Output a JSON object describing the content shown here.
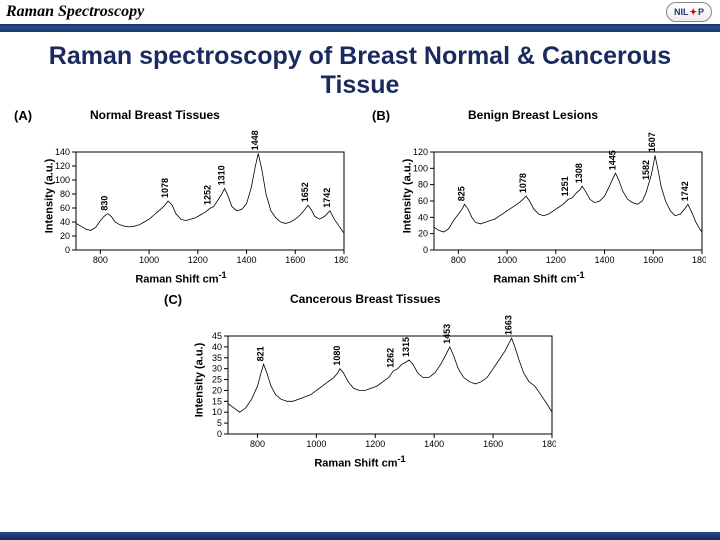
{
  "header": {
    "title": "Raman Spectroscopy",
    "logo_text": "NIL*P"
  },
  "main_title": "Raman spectroscopy of Breast Normal & Cancerous Tissue",
  "colors": {
    "header_border": "#1a3a6e",
    "title_color": "#1a2a5e",
    "line_color": "#000000",
    "axis_color": "#000000",
    "background": "#ffffff"
  },
  "axis_labels": {
    "y": "Intensity (a.u.)",
    "x_html": "Raman Shift cm⁻¹"
  },
  "chart_common": {
    "type": "line",
    "xlim": [
      700,
      1800
    ],
    "xtick_step": 200,
    "line_width": 0.8,
    "font_size_tick": 9,
    "font_size_label": 11,
    "font_size_subtitle": 12
  },
  "charts": {
    "A": {
      "panel": "(A)",
      "subtitle": "Normal Breast Tissues",
      "ylim": [
        0,
        140
      ],
      "ytick_step": 20,
      "peaks": [
        830,
        1078,
        1252,
        1310,
        1448,
        1652,
        1742
      ],
      "spectrum": [
        [
          700,
          38
        ],
        [
          720,
          34
        ],
        [
          740,
          30
        ],
        [
          760,
          28
        ],
        [
          780,
          32
        ],
        [
          800,
          42
        ],
        [
          815,
          48
        ],
        [
          830,
          52
        ],
        [
          845,
          48
        ],
        [
          860,
          40
        ],
        [
          880,
          36
        ],
        [
          900,
          34
        ],
        [
          920,
          33
        ],
        [
          940,
          34
        ],
        [
          960,
          36
        ],
        [
          980,
          40
        ],
        [
          1000,
          44
        ],
        [
          1020,
          50
        ],
        [
          1040,
          56
        ],
        [
          1060,
          62
        ],
        [
          1078,
          70
        ],
        [
          1095,
          64
        ],
        [
          1110,
          52
        ],
        [
          1130,
          44
        ],
        [
          1150,
          42
        ],
        [
          1170,
          44
        ],
        [
          1190,
          46
        ],
        [
          1210,
          50
        ],
        [
          1230,
          54
        ],
        [
          1252,
          60
        ],
        [
          1265,
          62
        ],
        [
          1280,
          70
        ],
        [
          1295,
          78
        ],
        [
          1310,
          88
        ],
        [
          1325,
          76
        ],
        [
          1340,
          62
        ],
        [
          1360,
          56
        ],
        [
          1380,
          58
        ],
        [
          1400,
          66
        ],
        [
          1420,
          90
        ],
        [
          1435,
          118
        ],
        [
          1448,
          138
        ],
        [
          1462,
          116
        ],
        [
          1480,
          80
        ],
        [
          1500,
          56
        ],
        [
          1520,
          46
        ],
        [
          1540,
          40
        ],
        [
          1560,
          38
        ],
        [
          1580,
          40
        ],
        [
          1600,
          44
        ],
        [
          1620,
          50
        ],
        [
          1640,
          58
        ],
        [
          1652,
          64
        ],
        [
          1665,
          58
        ],
        [
          1680,
          48
        ],
        [
          1700,
          44
        ],
        [
          1720,
          48
        ],
        [
          1742,
          56
        ],
        [
          1760,
          44
        ],
        [
          1780,
          34
        ],
        [
          1800,
          24
        ]
      ]
    },
    "B": {
      "panel": "(B)",
      "subtitle": "Benign Breast Lesions",
      "ylim": [
        0,
        120
      ],
      "ytick_step": 20,
      "peaks": [
        825,
        1078,
        1251,
        1308,
        1445,
        1582,
        1607,
        1742
      ],
      "spectrum": [
        [
          700,
          28
        ],
        [
          720,
          24
        ],
        [
          740,
          22
        ],
        [
          760,
          26
        ],
        [
          780,
          36
        ],
        [
          800,
          44
        ],
        [
          815,
          50
        ],
        [
          825,
          56
        ],
        [
          840,
          50
        ],
        [
          855,
          40
        ],
        [
          870,
          34
        ],
        [
          890,
          32
        ],
        [
          910,
          34
        ],
        [
          930,
          36
        ],
        [
          950,
          38
        ],
        [
          970,
          42
        ],
        [
          990,
          46
        ],
        [
          1010,
          50
        ],
        [
          1030,
          54
        ],
        [
          1050,
          58
        ],
        [
          1065,
          62
        ],
        [
          1078,
          66
        ],
        [
          1092,
          60
        ],
        [
          1110,
          50
        ],
        [
          1130,
          44
        ],
        [
          1150,
          42
        ],
        [
          1170,
          44
        ],
        [
          1190,
          48
        ],
        [
          1210,
          52
        ],
        [
          1230,
          56
        ],
        [
          1251,
          62
        ],
        [
          1268,
          64
        ],
        [
          1285,
          70
        ],
        [
          1300,
          74
        ],
        [
          1308,
          78
        ],
        [
          1322,
          72
        ],
        [
          1340,
          62
        ],
        [
          1360,
          58
        ],
        [
          1380,
          60
        ],
        [
          1400,
          66
        ],
        [
          1420,
          78
        ],
        [
          1435,
          88
        ],
        [
          1445,
          94
        ],
        [
          1458,
          86
        ],
        [
          1475,
          72
        ],
        [
          1495,
          62
        ],
        [
          1515,
          58
        ],
        [
          1535,
          56
        ],
        [
          1555,
          60
        ],
        [
          1570,
          70
        ],
        [
          1582,
          82
        ],
        [
          1592,
          92
        ],
        [
          1600,
          104
        ],
        [
          1607,
          116
        ],
        [
          1618,
          100
        ],
        [
          1632,
          78
        ],
        [
          1650,
          60
        ],
        [
          1670,
          48
        ],
        [
          1690,
          42
        ],
        [
          1710,
          44
        ],
        [
          1728,
          50
        ],
        [
          1742,
          56
        ],
        [
          1758,
          46
        ],
        [
          1775,
          34
        ],
        [
          1790,
          26
        ],
        [
          1800,
          22
        ]
      ]
    },
    "C": {
      "panel": "(C)",
      "subtitle": "Cancerous Breast Tissues",
      "ylim": [
        0,
        45
      ],
      "ytick_step": 5,
      "peaks": [
        821,
        1080,
        1262,
        1315,
        1453,
        1663
      ],
      "spectrum": [
        [
          700,
          14
        ],
        [
          720,
          12
        ],
        [
          740,
          10
        ],
        [
          760,
          12
        ],
        [
          780,
          16
        ],
        [
          800,
          22
        ],
        [
          812,
          28
        ],
        [
          821,
          32
        ],
        [
          832,
          28
        ],
        [
          846,
          22
        ],
        [
          862,
          18
        ],
        [
          880,
          16
        ],
        [
          900,
          15
        ],
        [
          920,
          15
        ],
        [
          940,
          16
        ],
        [
          960,
          17
        ],
        [
          980,
          18
        ],
        [
          1000,
          20
        ],
        [
          1020,
          22
        ],
        [
          1040,
          24
        ],
        [
          1060,
          26
        ],
        [
          1072,
          28
        ],
        [
          1080,
          30
        ],
        [
          1092,
          28
        ],
        [
          1108,
          24
        ],
        [
          1126,
          21
        ],
        [
          1146,
          20
        ],
        [
          1166,
          20
        ],
        [
          1186,
          21
        ],
        [
          1206,
          22
        ],
        [
          1226,
          24
        ],
        [
          1246,
          26
        ],
        [
          1262,
          29
        ],
        [
          1276,
          30
        ],
        [
          1290,
          32
        ],
        [
          1304,
          33
        ],
        [
          1315,
          34
        ],
        [
          1328,
          32
        ],
        [
          1344,
          28
        ],
        [
          1362,
          26
        ],
        [
          1382,
          26
        ],
        [
          1402,
          28
        ],
        [
          1422,
          32
        ],
        [
          1438,
          36
        ],
        [
          1453,
          40
        ],
        [
          1466,
          36
        ],
        [
          1482,
          30
        ],
        [
          1500,
          26
        ],
        [
          1520,
          24
        ],
        [
          1540,
          23
        ],
        [
          1560,
          24
        ],
        [
          1580,
          26
        ],
        [
          1600,
          30
        ],
        [
          1620,
          34
        ],
        [
          1640,
          38
        ],
        [
          1655,
          42
        ],
        [
          1663,
          44
        ],
        [
          1674,
          40
        ],
        [
          1688,
          34
        ],
        [
          1704,
          28
        ],
        [
          1722,
          24
        ],
        [
          1742,
          22
        ],
        [
          1762,
          18
        ],
        [
          1782,
          14
        ],
        [
          1800,
          10
        ]
      ]
    }
  }
}
